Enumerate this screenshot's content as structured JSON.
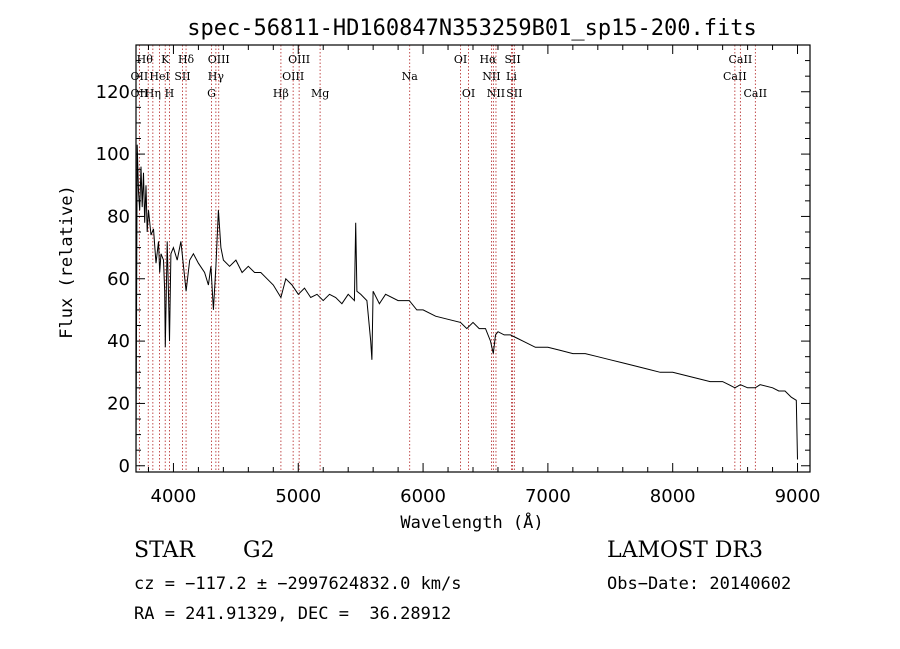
{
  "chart_data": {
    "type": "line",
    "title": "spec-56811-HD160847N353259B01_sp15-200.fits",
    "xlabel": "Wavelength (Å)",
    "ylabel": "Flux (relative)",
    "xlim": [
      3700,
      9100
    ],
    "ylim": [
      -2,
      135
    ],
    "xticks": [
      4000,
      5000,
      6000,
      7000,
      8000,
      9000
    ],
    "yticks": [
      0,
      20,
      40,
      60,
      80,
      100,
      120
    ],
    "grid": false,
    "series": [
      {
        "name": "flux",
        "x": [
          3700,
          3710,
          3720,
          3730,
          3740,
          3750,
          3760,
          3770,
          3780,
          3790,
          3800,
          3820,
          3840,
          3860,
          3880,
          3890,
          3900,
          3920,
          3930,
          3935,
          3950,
          3960,
          3968,
          3980,
          4000,
          4030,
          4060,
          4101,
          4130,
          4160,
          4200,
          4250,
          4280,
          4300,
          4320,
          4340,
          4360,
          4380,
          4400,
          4450,
          4500,
          4550,
          4600,
          4650,
          4700,
          4750,
          4800,
          4861,
          4900,
          4950,
          5000,
          5050,
          5100,
          5150,
          5200,
          5250,
          5300,
          5350,
          5400,
          5450,
          5460,
          5470,
          5500,
          5550,
          5580,
          5590,
          5600,
          5650,
          5700,
          5800,
          5890,
          5950,
          6000,
          6100,
          6200,
          6300,
          6350,
          6400,
          6450,
          6500,
          6540,
          6563,
          6580,
          6600,
          6650,
          6700,
          6750,
          6800,
          6900,
          7000,
          7100,
          7200,
          7300,
          7400,
          7500,
          7600,
          7700,
          7800,
          7900,
          8000,
          8100,
          8200,
          8300,
          8400,
          8450,
          8498,
          8542,
          8600,
          8662,
          8700,
          8800,
          8850,
          8900,
          8950,
          8990,
          9000
        ],
        "y": [
          2,
          103,
          88,
          82,
          96,
          83,
          94,
          78,
          90,
          75,
          82,
          74,
          76,
          65,
          72,
          62,
          68,
          66,
          56,
          38,
          72,
          55,
          40,
          68,
          70,
          66,
          72,
          56,
          66,
          68,
          65,
          62,
          58,
          64,
          50,
          64,
          82,
          70,
          66,
          64,
          66,
          62,
          64,
          62,
          62,
          60,
          58,
          54,
          60,
          58,
          55,
          57,
          54,
          55,
          53,
          55,
          54,
          52,
          55,
          53,
          78,
          56,
          55,
          53,
          40,
          34,
          56,
          52,
          55,
          53,
          53,
          50,
          50,
          48,
          47,
          46,
          44,
          46,
          44,
          44,
          40,
          36,
          42,
          43,
          42,
          42,
          41,
          40,
          38,
          38,
          37,
          36,
          36,
          35,
          34,
          33,
          32,
          31,
          30,
          30,
          29,
          28,
          27,
          27,
          26,
          25,
          26,
          25,
          25,
          26,
          25,
          24,
          24,
          22,
          21,
          2
        ]
      }
    ],
    "lines": [
      {
        "name": "OII",
        "wl": 3727
      },
      {
        "name": "Hθ",
        "wl": 3798
      },
      {
        "name": "Hη",
        "wl": 3835
      },
      {
        "name": "HeI",
        "wl": 3889
      },
      {
        "name": "K",
        "wl": 3934
      },
      {
        "name": "H",
        "wl": 3968
      },
      {
        "name": "SII",
        "wl": 4072
      },
      {
        "name": "Hδ",
        "wl": 4101
      },
      {
        "name": "G",
        "wl": 4305
      },
      {
        "name": "Hγ",
        "wl": 4340
      },
      {
        "name": "OIII",
        "wl": 4363
      },
      {
        "name": "Hβ",
        "wl": 4861
      },
      {
        "name": "OIII",
        "wl": 4959
      },
      {
        "name": "OIII",
        "wl": 5007
      },
      {
        "name": "Mg",
        "wl": 5175
      },
      {
        "name": "Na",
        "wl": 5893
      },
      {
        "name": "OI",
        "wl": 6300
      },
      {
        "name": "OI",
        "wl": 6364
      },
      {
        "name": "NII",
        "wl": 6548
      },
      {
        "name": "Hα",
        "wl": 6563
      },
      {
        "name": "NII",
        "wl": 6584
      },
      {
        "name": "Li",
        "wl": 6708
      },
      {
        "name": "SII",
        "wl": 6717
      },
      {
        "name": "SII",
        "wl": 6731
      },
      {
        "name": "CaII",
        "wl": 8498
      },
      {
        "name": "CaII",
        "wl": 8542
      },
      {
        "name": "CaII",
        "wl": 8662
      }
    ],
    "line_labels": [
      {
        "text": "Hθ",
        "wl": 3770,
        "row": 0
      },
      {
        "text": "K",
        "wl": 3934,
        "row": 0
      },
      {
        "text": "Hδ",
        "wl": 4101,
        "row": 0
      },
      {
        "text": "OIII",
        "wl": 4363,
        "row": 0
      },
      {
        "text": "OIII",
        "wl": 5007,
        "row": 0
      },
      {
        "text": "OI",
        "wl": 6300,
        "row": 0
      },
      {
        "text": "Hα",
        "wl": 6520,
        "row": 0
      },
      {
        "text": "SII",
        "wl": 6717,
        "row": 0
      },
      {
        "text": "CaII",
        "wl": 8542,
        "row": 0
      },
      {
        "text": "OII",
        "wl": 3727,
        "row": 1
      },
      {
        "text": "HeI",
        "wl": 3889,
        "row": 1
      },
      {
        "text": "SII",
        "wl": 4072,
        "row": 1
      },
      {
        "text": "Hγ",
        "wl": 4340,
        "row": 1
      },
      {
        "text": "OIII",
        "wl": 4959,
        "row": 1
      },
      {
        "text": "Na",
        "wl": 5893,
        "row": 1
      },
      {
        "text": "NII",
        "wl": 6548,
        "row": 1
      },
      {
        "text": "Li",
        "wl": 6708,
        "row": 1
      },
      {
        "text": "CaII",
        "wl": 8498,
        "row": 1
      },
      {
        "text": "OII",
        "wl": 3727,
        "row": 2
      },
      {
        "text": "Hη",
        "wl": 3835,
        "row": 2
      },
      {
        "text": "H",
        "wl": 3968,
        "row": 2
      },
      {
        "text": "G",
        "wl": 4305,
        "row": 2
      },
      {
        "text": "Hβ",
        "wl": 4861,
        "row": 2
      },
      {
        "text": "Mg",
        "wl": 5175,
        "row": 2
      },
      {
        "text": "OI",
        "wl": 6364,
        "row": 2
      },
      {
        "text": "NII",
        "wl": 6584,
        "row": 2
      },
      {
        "text": "SII",
        "wl": 6731,
        "row": 2
      },
      {
        "text": "CaII",
        "wl": 8662,
        "row": 2
      }
    ]
  },
  "info": {
    "class": "STAR",
    "subclass": "G2",
    "survey": "LAMOST DR3",
    "cz": "cz = −117.2 ± −2997624832.0 km/s",
    "obsdate": "Obs−Date: 20140602",
    "radec": "RA = 241.91329, DEC =  36.28912"
  },
  "colors": {
    "spectrum": "#000000",
    "line_markers": "#b22222",
    "axes": "#000000"
  }
}
